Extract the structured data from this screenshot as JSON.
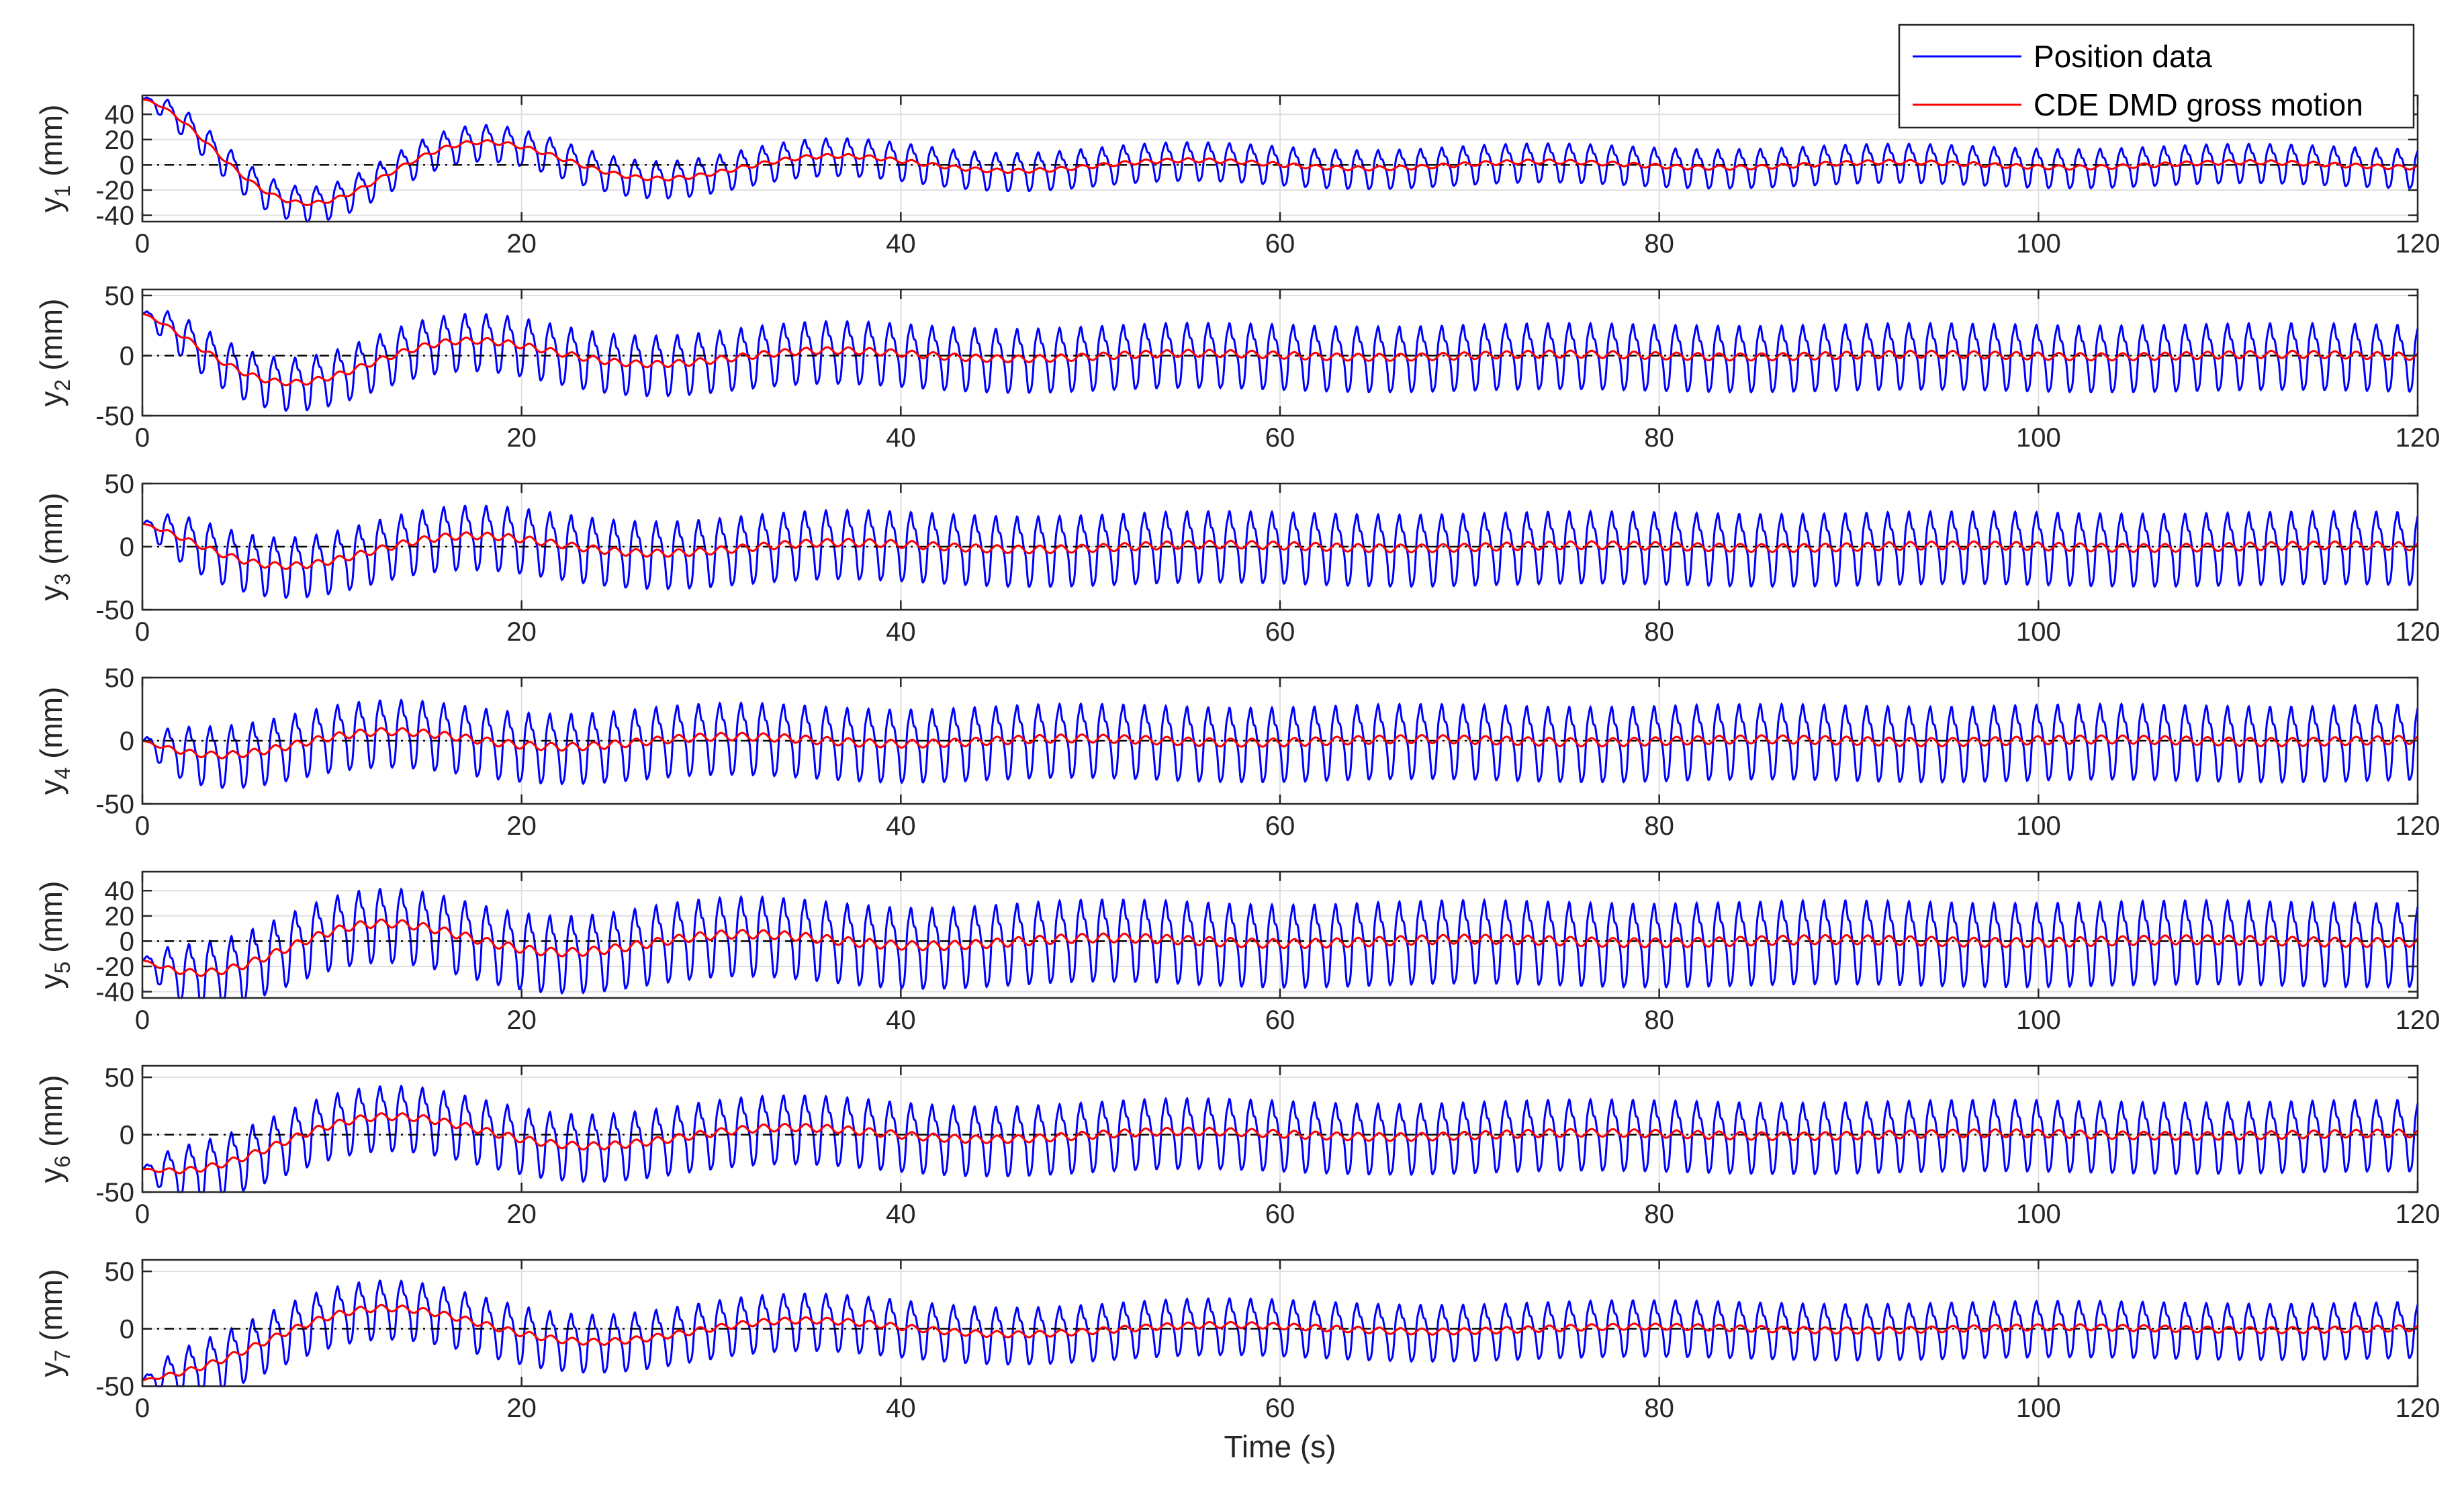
{
  "chart_data": [
    {
      "type": "line",
      "ylabel_var": "y",
      "ylabel_sub": "1",
      "ylabel_unit": " (mm)",
      "xlim": [
        0,
        120
      ],
      "ylim": [
        -45,
        55
      ],
      "yticks": [
        -40,
        -20,
        0,
        20,
        40
      ],
      "xticks": [
        0,
        20,
        40,
        60,
        80,
        100,
        120
      ],
      "grid": true,
      "signal": {
        "amp_start": 12,
        "amp_end": 14,
        "gross_start": 52,
        "gross_end": 2,
        "decay_tau": 16,
        "gross_period": 18.5,
        "gross_phase": 0.0,
        "start_value": 52
      },
      "series": [
        {
          "name": "Position data",
          "color": "#0000ff"
        },
        {
          "name": "CDE DMD gross motion",
          "color": "#ff0000"
        }
      ]
    },
    {
      "type": "line",
      "ylabel_var": "y",
      "ylabel_sub": "2",
      "ylabel_unit": " (mm)",
      "xlim": [
        0,
        120
      ],
      "ylim": [
        -50,
        55
      ],
      "yticks": [
        -50,
        0,
        50
      ],
      "xticks": [
        0,
        20,
        40,
        60,
        80,
        100,
        120
      ],
      "grid": true,
      "signal": {
        "amp_start": 18,
        "amp_end": 25,
        "gross_start": 38,
        "gross_end": 1,
        "decay_tau": 15,
        "gross_period": 19.0,
        "gross_phase": 0.35,
        "start_value": 35
      },
      "series": [
        {
          "name": "Position data",
          "color": "#0000ff"
        },
        {
          "name": "CDE DMD gross motion",
          "color": "#ff0000"
        }
      ]
    },
    {
      "type": "line",
      "ylabel_var": "y",
      "ylabel_sub": "3",
      "ylabel_unit": " (mm)",
      "xlim": [
        0,
        120
      ],
      "ylim": [
        -50,
        50
      ],
      "yticks": [
        -50,
        0,
        50
      ],
      "xticks": [
        0,
        20,
        40,
        60,
        80,
        100,
        120
      ],
      "grid": true,
      "signal": {
        "amp_start": 20,
        "amp_end": 26,
        "gross_start": 24,
        "gross_end": 1,
        "decay_tau": 16,
        "gross_period": 19.5,
        "gross_phase": 0.5,
        "start_value": 18
      },
      "series": [
        {
          "name": "Position data",
          "color": "#0000ff"
        },
        {
          "name": "CDE DMD gross motion",
          "color": "#ff0000"
        }
      ]
    },
    {
      "type": "line",
      "ylabel_var": "y",
      "ylabel_sub": "4",
      "ylabel_unit": " (mm)",
      "xlim": [
        0,
        120
      ],
      "ylim": [
        -50,
        50
      ],
      "yticks": [
        -50,
        0,
        50
      ],
      "xticks": [
        0,
        20,
        40,
        60,
        80,
        100,
        120
      ],
      "grid": true,
      "signal": {
        "amp_start": 22,
        "amp_end": 27,
        "gross_start": 14,
        "gross_end": 1,
        "decay_tau": 18,
        "gross_period": 18.0,
        "gross_phase": 1.57,
        "start_value": 0
      },
      "series": [
        {
          "name": "Position data",
          "color": "#0000ff"
        },
        {
          "name": "CDE DMD gross motion",
          "color": "#ff0000"
        }
      ]
    },
    {
      "type": "line",
      "ylabel_var": "y",
      "ylabel_sub": "5",
      "ylabel_unit": " (mm)",
      "xlim": [
        0,
        120
      ],
      "ylim": [
        -45,
        55
      ],
      "yticks": [
        -40,
        -20,
        0,
        20,
        40
      ],
      "xticks": [
        0,
        20,
        40,
        60,
        80,
        100,
        120
      ],
      "grid": true,
      "signal": {
        "amp_start": 24,
        "amp_end": 30,
        "gross_start": 28,
        "gross_end": 1,
        "decay_tau": 18,
        "gross_period": 19.0,
        "gross_phase": 1.9,
        "start_value": -15
      },
      "series": [
        {
          "name": "Position data",
          "color": "#0000ff"
        },
        {
          "name": "CDE DMD gross motion",
          "color": "#ff0000"
        }
      ]
    },
    {
      "type": "line",
      "ylabel_var": "y",
      "ylabel_sub": "6",
      "ylabel_unit": " (mm)",
      "xlim": [
        0,
        120
      ],
      "ylim": [
        -50,
        60
      ],
      "yticks": [
        -50,
        0,
        50
      ],
      "xticks": [
        0,
        20,
        40,
        60,
        80,
        100,
        120
      ],
      "grid": true,
      "signal": {
        "amp_start": 24,
        "amp_end": 28,
        "gross_start": 30,
        "gross_end": 1,
        "decay_tau": 20,
        "gross_period": 21.0,
        "gross_phase": 2.2,
        "start_value": -30
      },
      "series": [
        {
          "name": "Position data",
          "color": "#0000ff"
        },
        {
          "name": "CDE DMD gross motion",
          "color": "#ff0000"
        }
      ]
    },
    {
      "type": "line",
      "ylabel_var": "y",
      "ylabel_sub": "7",
      "ylabel_unit": " (mm)",
      "xlim": [
        0,
        120
      ],
      "ylim": [
        -50,
        60
      ],
      "yticks": [
        -50,
        0,
        50
      ],
      "xticks": [
        0,
        20,
        40,
        60,
        80,
        100,
        120
      ],
      "grid": true,
      "signal": {
        "amp_start": 24,
        "amp_end": 22,
        "gross_start": 32,
        "gross_end": 1,
        "decay_tau": 22,
        "gross_period": 22.0,
        "gross_phase": 2.45,
        "start_value": -45
      },
      "series": [
        {
          "name": "Position data",
          "color": "#0000ff"
        },
        {
          "name": "CDE DMD gross motion",
          "color": "#ff0000"
        }
      ]
    }
  ],
  "xlabel": "Time (s)",
  "oscillation_period_s": 1.12,
  "legend": {
    "position": "top-right",
    "entries": [
      {
        "label": "Position data",
        "color": "#0000ff"
      },
      {
        "label": "CDE DMD gross motion",
        "color": "#ff0000"
      }
    ]
  },
  "colors": {
    "axes": "#262626",
    "grid": "#dfdfdf",
    "zero_line": "#000000"
  }
}
